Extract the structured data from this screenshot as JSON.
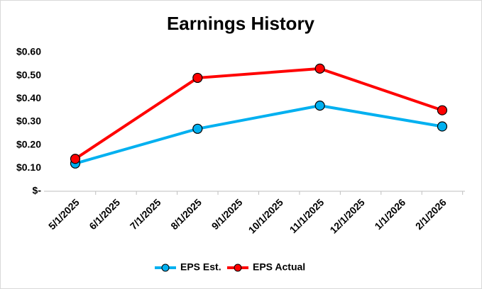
{
  "chart_data": {
    "type": "line",
    "title": "Earnings History",
    "categories": [
      "5/1/2025",
      "6/1/2025",
      "7/1/2025",
      "8/1/2025",
      "9/1/2025",
      "10/1/2025",
      "11/1/2025",
      "12/1/2025",
      "1/1/2026",
      "2/1/2026"
    ],
    "x": [
      "5/1/2025",
      "8/1/2025",
      "11/1/2025",
      "2/1/2026"
    ],
    "series": [
      {
        "name": "EPS Est.",
        "color": "#00b0f0",
        "values": [
          0.12,
          0.27,
          0.37,
          0.28
        ]
      },
      {
        "name": "EPS Actual",
        "color": "#ff0000",
        "values": [
          0.14,
          0.49,
          0.53,
          0.35
        ]
      }
    ],
    "ylim": [
      0,
      0.6
    ],
    "yticks": [
      {
        "value": 0,
        "label": "$-"
      },
      {
        "value": 0.1,
        "label": "$0.10"
      },
      {
        "value": 0.2,
        "label": "$0.20"
      },
      {
        "value": 0.3,
        "label": "$0.30"
      },
      {
        "value": 0.4,
        "label": "$0.40"
      },
      {
        "value": 0.5,
        "label": "$0.50"
      },
      {
        "value": 0.6,
        "label": "$0.60"
      }
    ],
    "grid": false,
    "legend": "bottom"
  }
}
